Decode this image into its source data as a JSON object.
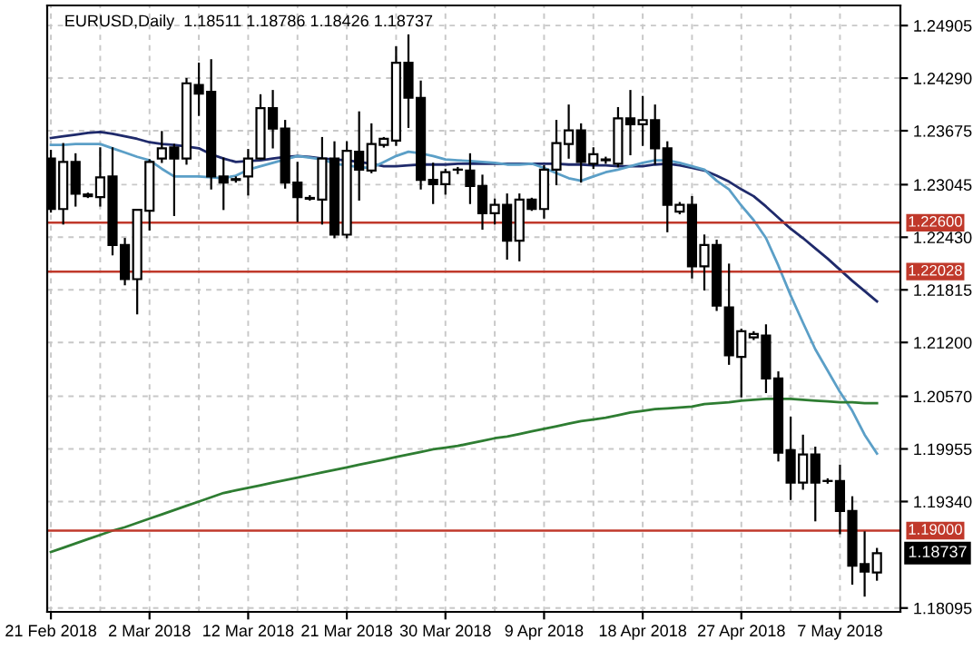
{
  "chart_data": {
    "type": "candlestick",
    "title": "EURUSD,Daily  1.18511 1.18786 1.18426 1.18737",
    "categories": [
      "21 Feb 2018",
      null,
      null,
      null,
      null,
      null,
      null,
      null,
      "2 Mar 2018",
      null,
      null,
      null,
      null,
      null,
      null,
      null,
      "12 Mar 2018",
      null,
      null,
      null,
      null,
      null,
      null,
      null,
      "21 Mar 2018",
      null,
      null,
      null,
      null,
      null,
      null,
      null,
      "30 Mar 2018",
      null,
      null,
      null,
      null,
      null,
      null,
      null,
      "9 Apr 2018",
      null,
      null,
      null,
      null,
      null,
      null,
      null,
      "18 Apr 2018",
      null,
      null,
      null,
      null,
      null,
      null,
      null,
      "27 Apr 2018",
      null,
      null,
      null,
      null,
      null,
      null,
      null,
      "7 May 2018",
      null,
      null,
      null
    ],
    "ohlc": [
      [
        1.2335,
        1.2344,
        1.2273,
        1.2276
      ],
      [
        1.2276,
        1.2352,
        1.2259,
        1.2331
      ],
      [
        1.2331,
        1.234,
        1.228,
        1.2294
      ],
      [
        1.2293,
        1.2294,
        1.229,
        1.2291
      ],
      [
        1.229,
        1.2347,
        1.228,
        1.2313
      ],
      [
        1.2314,
        1.2347,
        1.2223,
        1.2234
      ],
      [
        1.2234,
        1.2241,
        1.2188,
        1.2194
      ],
      [
        1.2194,
        1.2275,
        1.2154,
        1.2275
      ],
      [
        1.2274,
        1.2333,
        1.2252,
        1.2331
      ],
      [
        1.2335,
        1.2366,
        1.2331,
        1.2347
      ],
      [
        1.2348,
        1.2351,
        1.2269,
        1.2335
      ],
      [
        1.2335,
        1.2428,
        1.2329,
        1.2423
      ],
      [
        1.2421,
        1.2446,
        1.2386,
        1.2411
      ],
      [
        1.2413,
        1.245,
        1.23,
        1.2314
      ],
      [
        1.2314,
        1.2335,
        1.2276,
        1.2307
      ],
      [
        1.231,
        1.2313,
        1.2308,
        1.2311
      ],
      [
        1.2314,
        1.2345,
        1.2293,
        1.2335
      ],
      [
        1.2335,
        1.2409,
        1.2335,
        1.2394
      ],
      [
        1.2394,
        1.2414,
        1.2348,
        1.237
      ],
      [
        1.237,
        1.2379,
        1.2301,
        1.2307
      ],
      [
        1.2307,
        1.233,
        1.2262,
        1.229
      ],
      [
        1.2288,
        1.2291,
        1.2287,
        1.2289
      ],
      [
        1.2287,
        1.2359,
        1.2259,
        1.2335
      ],
      [
        1.2335,
        1.2354,
        1.2243,
        1.2246
      ],
      [
        1.2246,
        1.2354,
        1.2243,
        1.2344
      ],
      [
        1.2343,
        1.2389,
        1.2287,
        1.2322
      ],
      [
        1.2321,
        1.2375,
        1.2319,
        1.2352
      ],
      [
        1.2351,
        1.2359,
        1.2349,
        1.2358
      ],
      [
        1.2356,
        1.2465,
        1.2351,
        1.2447
      ],
      [
        1.2447,
        1.2479,
        1.2372,
        1.2406
      ],
      [
        1.2406,
        1.2425,
        1.23,
        1.231
      ],
      [
        1.231,
        1.2329,
        1.2283,
        1.2305
      ],
      [
        1.2305,
        1.2322,
        1.2294,
        1.2319
      ],
      [
        1.2322,
        1.2324,
        1.2318,
        1.2322
      ],
      [
        1.2321,
        1.234,
        1.2283,
        1.2303
      ],
      [
        1.2303,
        1.2315,
        1.2253,
        1.2271
      ],
      [
        1.2271,
        1.2287,
        1.2259,
        1.2281
      ],
      [
        1.2281,
        1.2293,
        1.2218,
        1.2239
      ],
      [
        1.2239,
        1.2293,
        1.2216,
        1.2287
      ],
      [
        1.2287,
        1.2288,
        1.2275,
        1.2276
      ],
      [
        1.2276,
        1.2326,
        1.2266,
        1.2322
      ],
      [
        1.2322,
        1.2379,
        1.2305,
        1.2353
      ],
      [
        1.2352,
        1.2397,
        1.2336,
        1.2368
      ],
      [
        1.2368,
        1.2375,
        1.2308,
        1.2331
      ],
      [
        1.2329,
        1.2347,
        1.2324,
        1.234
      ],
      [
        1.2333,
        1.2336,
        1.233,
        1.2334
      ],
      [
        1.2329,
        1.2394,
        1.2326,
        1.2382
      ],
      [
        1.2382,
        1.2414,
        1.234,
        1.2375
      ],
      [
        1.2375,
        1.2407,
        1.2351,
        1.238
      ],
      [
        1.238,
        1.2397,
        1.2329,
        1.2347
      ],
      [
        1.2347,
        1.2354,
        1.225,
        1.2281
      ],
      [
        1.2273,
        1.2283,
        1.2271,
        1.2281
      ],
      [
        1.2281,
        1.229,
        1.2196,
        1.2209
      ],
      [
        1.2209,
        1.2245,
        1.2182,
        1.2234
      ],
      [
        1.2234,
        1.2239,
        1.2158,
        1.2163
      ],
      [
        1.2161,
        1.2211,
        1.2095,
        1.2105
      ],
      [
        1.2103,
        1.2135,
        1.2057,
        1.2133
      ],
      [
        1.2126,
        1.2132,
        1.2124,
        1.213
      ],
      [
        1.2128,
        1.214,
        1.2062,
        1.2078
      ],
      [
        1.2078,
        1.2085,
        1.1982,
        1.1991
      ],
      [
        1.1994,
        1.2032,
        1.1937,
        1.1956
      ],
      [
        1.1956,
        1.2011,
        1.1949,
        1.1989
      ],
      [
        1.1989,
        1.1997,
        1.1912,
        1.1956
      ],
      [
        1.1958,
        1.196,
        1.1956,
        1.1958
      ],
      [
        1.1958,
        1.1976,
        1.1897,
        1.1923
      ],
      [
        1.1923,
        1.1939,
        1.1838,
        1.1859
      ],
      [
        1.1861,
        1.1898,
        1.1824,
        1.1852
      ],
      [
        1.18511,
        1.18786,
        1.18426,
        1.18737
      ]
    ],
    "series": [
      {
        "type": "line",
        "color": "#1f2a6b",
        "values": [
          1.2359,
          1.2361,
          1.2363,
          1.2365,
          1.2366,
          1.2364,
          1.2361,
          1.2358,
          1.2354,
          1.2352,
          1.2351,
          1.2349,
          1.2347,
          1.234,
          1.2335,
          1.2331,
          1.2332,
          1.2333,
          1.2335,
          1.2337,
          1.2338,
          1.2337,
          1.2335,
          1.2334,
          1.2333,
          1.2331,
          1.2329,
          1.2326,
          1.2326,
          1.2327,
          1.2328,
          1.2328,
          1.2328,
          1.2329,
          1.2329,
          1.2329,
          1.2329,
          1.2329,
          1.2329,
          1.2329,
          1.2329,
          1.2329,
          1.2328,
          1.2328,
          1.2327,
          1.2327,
          1.2326,
          1.2326,
          1.2326,
          1.2328,
          1.2329,
          1.2327,
          1.2324,
          1.2321,
          1.2315,
          1.2308,
          1.2299,
          1.2291,
          1.2279,
          1.2266,
          1.2253,
          1.2242,
          1.223,
          1.2218,
          1.2205,
          1.2192,
          1.218,
          1.2168
        ]
      },
      {
        "type": "line",
        "color": "#5b9fc7",
        "values": [
          1.2351,
          1.2351,
          1.2352,
          1.2352,
          1.2352,
          1.2347,
          1.2342,
          1.2337,
          1.2333,
          1.2323,
          1.2314,
          1.2314,
          1.2314,
          1.2313,
          1.2312,
          1.2315,
          1.2322,
          1.2326,
          1.233,
          1.2334,
          1.2338,
          1.2336,
          1.2334,
          1.2329,
          1.2327,
          1.2325,
          1.2324,
          1.2331,
          1.2338,
          1.2343,
          1.2341,
          1.2338,
          1.2334,
          1.2333,
          1.2332,
          1.2331,
          1.233,
          1.2328,
          1.2328,
          1.2329,
          1.2324,
          1.2318,
          1.2312,
          1.2309,
          1.2314,
          1.2319,
          1.2322,
          1.2326,
          1.233,
          1.2333,
          1.2333,
          1.233,
          1.2326,
          1.2322,
          1.2309,
          1.2299,
          1.228,
          1.2263,
          1.2242,
          1.221,
          1.2175,
          1.2143,
          1.2112,
          1.2087,
          1.2062,
          1.204,
          1.2012,
          1.199
        ]
      },
      {
        "type": "line",
        "color": "#2e7d32",
        "values": [
          1.1875,
          1.188,
          1.1885,
          1.189,
          1.1895,
          1.19,
          1.1904,
          1.1909,
          1.1914,
          1.1919,
          1.1924,
          1.1929,
          1.1934,
          1.1939,
          1.1944,
          1.1947,
          1.195,
          1.1953,
          1.1956,
          1.1959,
          1.1962,
          1.1965,
          1.1968,
          1.1971,
          1.1974,
          1.1977,
          1.198,
          1.1983,
          1.1986,
          1.1989,
          1.1992,
          1.1995,
          1.1997,
          1.1999,
          1.2002,
          1.2005,
          1.2008,
          1.201,
          1.2013,
          1.2016,
          1.2019,
          1.2022,
          1.2025,
          1.2028,
          1.203,
          1.2032,
          1.2035,
          1.2038,
          1.204,
          1.2042,
          1.2043,
          1.2044,
          1.2045,
          1.2048,
          1.2049,
          1.205,
          1.2052,
          1.2053,
          1.2054,
          1.2054,
          1.2054,
          1.2053,
          1.2052,
          1.2051,
          1.205,
          1.205,
          1.2049,
          1.2049
        ]
      }
    ],
    "ylim": [
      1.1805,
      1.2514
    ],
    "yticks": [
      1.24905,
      {
        "value": 1.2429,
        "label": "1.24290"
      },
      1.23675,
      1.23045,
      {
        "value": 1.2243,
        "label": "1.22430"
      },
      1.21815,
      {
        "value": 1.212,
        "label": "1.21200"
      },
      {
        "value": 1.2057,
        "label": "1.20570"
      },
      1.19955,
      {
        "value": 1.1934,
        "label": "1.19340"
      },
      1.18095
    ],
    "ref_lines": [
      {
        "axis": "y",
        "value": 1.226,
        "label": "1.22600",
        "color": "#c0392b"
      },
      {
        "axis": "y",
        "value": 1.22028,
        "label": "1.22028",
        "color": "#c0392b"
      },
      {
        "axis": "y",
        "value": 1.19,
        "label": "1.19000",
        "color": "#c0392b"
      }
    ],
    "annotations": [
      "1.18737"
    ],
    "grid": true
  }
}
